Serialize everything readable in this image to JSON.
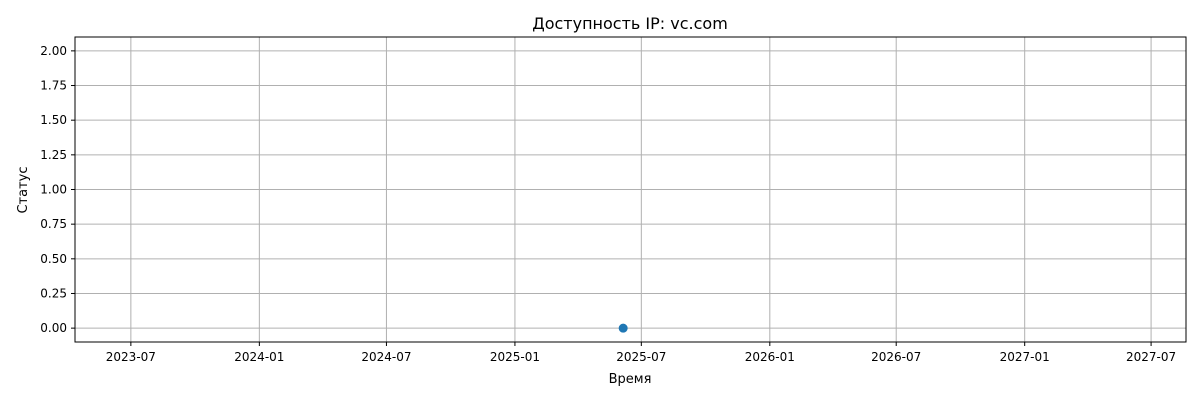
{
  "chart_data": {
    "type": "scatter",
    "title": "Доступность IP: vc.com",
    "xlabel": "Время",
    "ylabel": "Статус",
    "x_ticks": [
      "2023-07",
      "2024-01",
      "2024-07",
      "2025-01",
      "2025-07",
      "2026-01",
      "2026-07",
      "2027-01",
      "2027-07"
    ],
    "y_ticks": [
      "0.00",
      "0.25",
      "0.50",
      "0.75",
      "1.00",
      "1.25",
      "1.50",
      "1.75",
      "2.00"
    ],
    "xlim": [
      "2023-04-12",
      "2027-08-20"
    ],
    "ylim": [
      -0.1,
      2.1
    ],
    "grid": true,
    "points": [
      {
        "x": "2025-06-05",
        "y": 0
      }
    ],
    "colors": {
      "point": "#1f77b4",
      "grid": "#b0b0b0",
      "axes": "#000000"
    }
  }
}
